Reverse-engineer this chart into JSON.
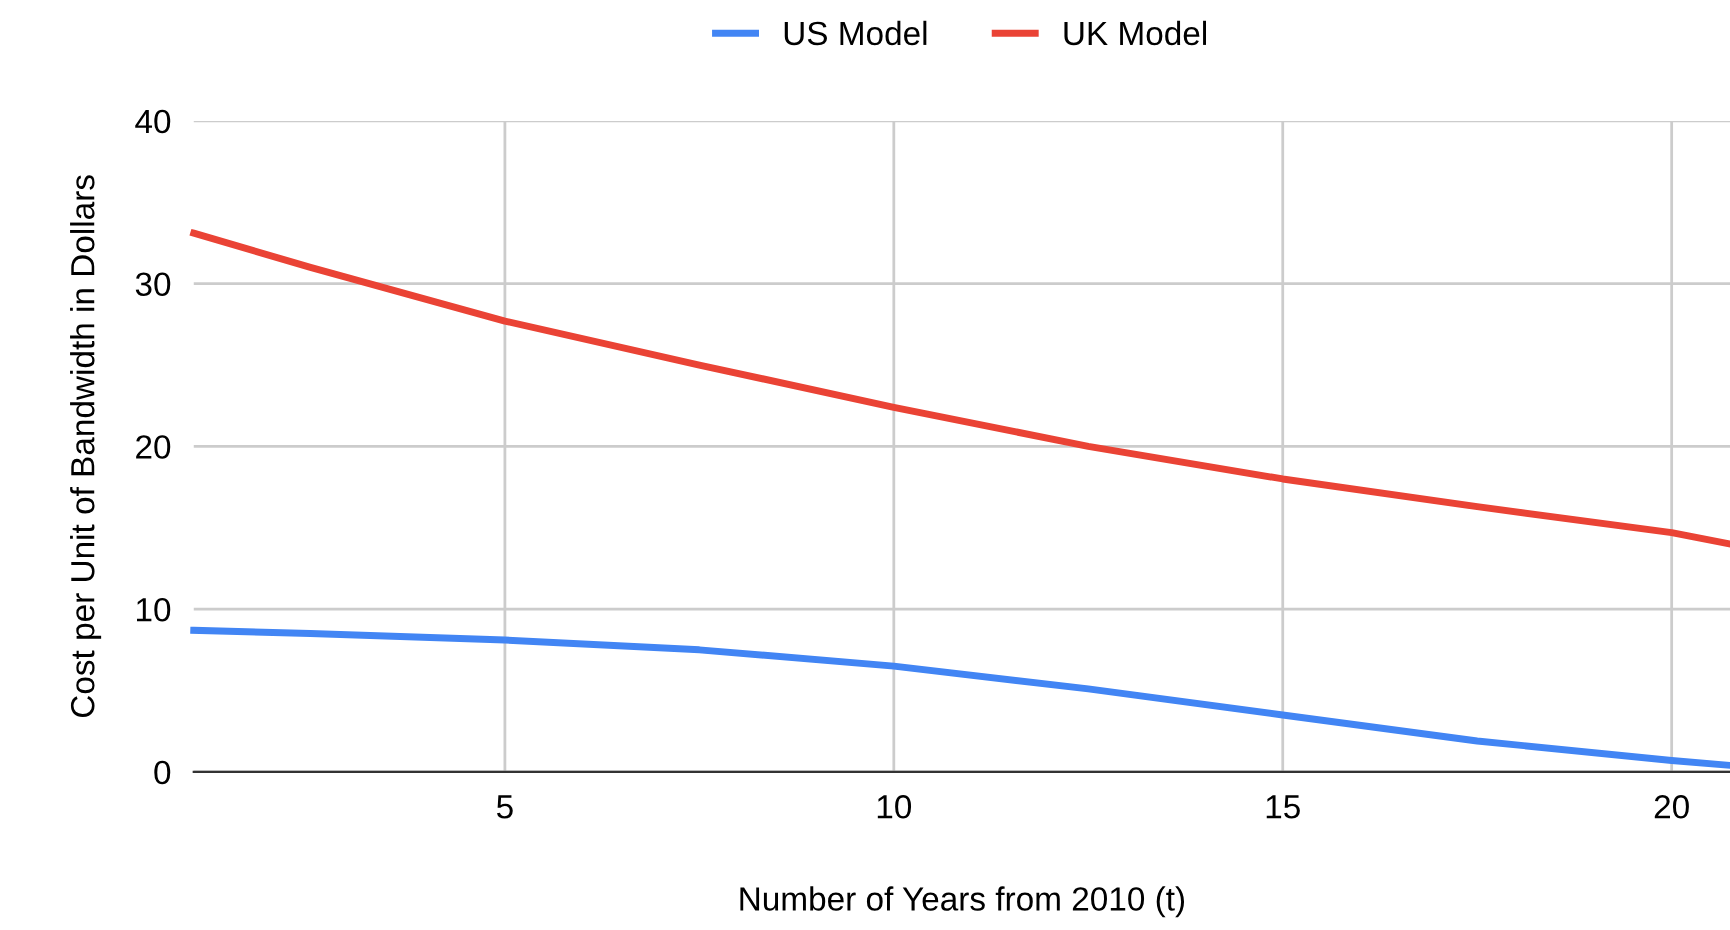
{
  "chart_data": {
    "type": "line",
    "xlabel": "Number of Years from 2010 (t)",
    "ylabel": "Cost per Unit of Bandwidth in Dollars",
    "x": [
      1,
      2.5,
      5,
      7.5,
      10,
      12.5,
      15,
      17.5,
      20,
      20.75
    ],
    "series": [
      {
        "name": "US Model",
        "color": "#4285f4",
        "values": [
          8.7,
          8.5,
          8.1,
          7.5,
          6.5,
          5.1,
          3.5,
          1.9,
          0.7,
          0.4
        ]
      },
      {
        "name": "UK Model",
        "color": "#ea4335",
        "values": [
          33.1,
          31,
          27.7,
          25,
          22.4,
          20,
          18,
          16.3,
          14.7,
          14
        ]
      }
    ],
    "xlim": [
      1,
      20.75
    ],
    "xticks": [
      5,
      10,
      15,
      20
    ],
    "ylim": [
      0,
      40
    ],
    "yticks": [
      0,
      10,
      20,
      30,
      40
    ],
    "grid": true,
    "legend": "top",
    "marker": "none",
    "line_style": "solid"
  }
}
